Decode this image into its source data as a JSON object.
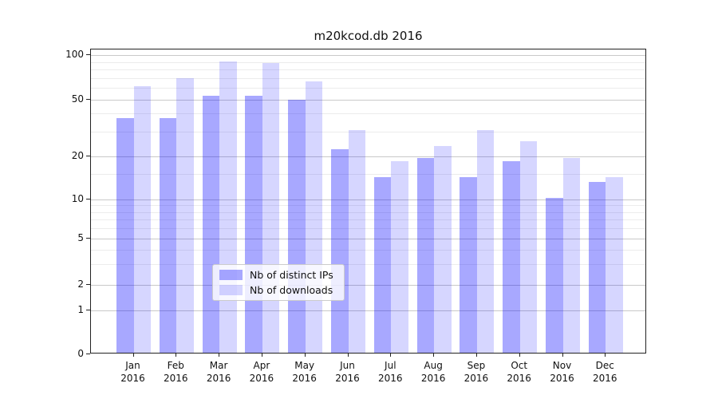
{
  "title": "m20kcod.db 2016",
  "chart_data": {
    "type": "bar",
    "title": "m20kcod.db 2016",
    "categories": [
      "Jan 2016",
      "Feb 2016",
      "Mar 2016",
      "Apr 2016",
      "May 2016",
      "Jun 2016",
      "Jul 2016",
      "Aug 2016",
      "Sep 2016",
      "Oct 2016",
      "Nov 2016",
      "Dec 2016"
    ],
    "series": [
      {
        "name": "Nb of distinct IPs",
        "color": "rgba(0,0,255,0.34)",
        "values": [
          36,
          36,
          52,
          52,
          49,
          22,
          14,
          19,
          14,
          18,
          10,
          13
        ]
      },
      {
        "name": "Nb of downloads",
        "color": "rgba(0,0,255,0.16)",
        "values": [
          60,
          68,
          88,
          86,
          65,
          30,
          18,
          23,
          30,
          25,
          19,
          14
        ]
      }
    ],
    "xlabel": "",
    "ylabel": "",
    "yscale": "symlog-like (logarithmic above 1, compressed linear below 1, includes 0)",
    "yticks": [
      0,
      1,
      2,
      5,
      10,
      20,
      50,
      100
    ],
    "yticks_minor": [
      3,
      4,
      6,
      7,
      8,
      9,
      15,
      30,
      40,
      60,
      70,
      80,
      90
    ],
    "ylim": [
      0,
      115
    ],
    "grid": "horizontal major and minor gridlines",
    "legend_position": "lower center (inside plot)",
    "bar_style": "grouped pairs, translucent blue"
  }
}
